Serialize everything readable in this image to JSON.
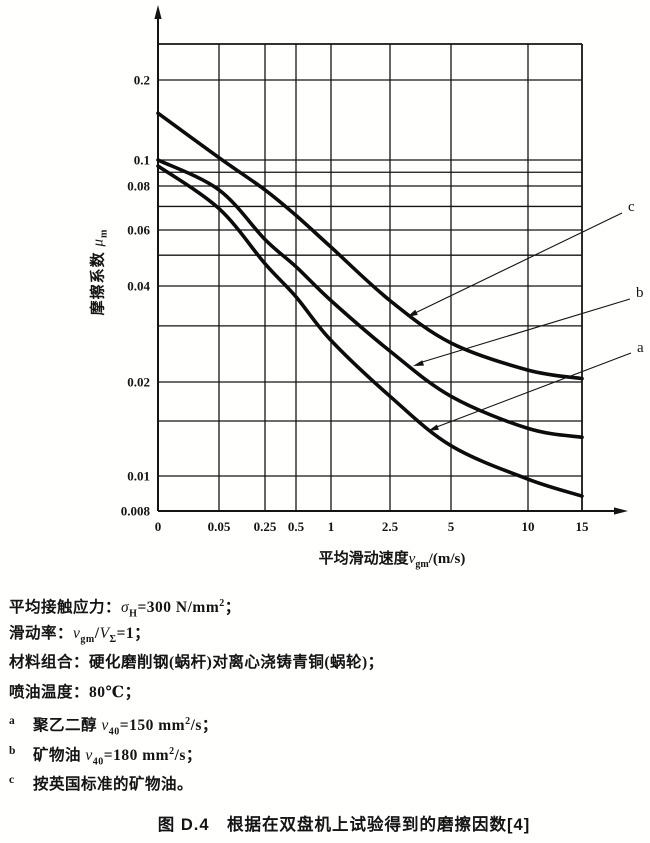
{
  "chart_data": {
    "type": "line",
    "title": "",
    "x": [
      0,
      0.05,
      0.25,
      0.5,
      1,
      2.5,
      5,
      10,
      15
    ],
    "series": [
      {
        "name": "a",
        "values": [
          0.095,
          0.069,
          0.047,
          0.037,
          0.027,
          0.018,
          0.0125,
          0.0098,
          0.0088
        ]
      },
      {
        "name": "b",
        "values": [
          0.1,
          0.078,
          0.056,
          0.046,
          0.036,
          0.025,
          0.018,
          0.0142,
          0.0133
        ]
      },
      {
        "name": "c",
        "values": [
          0.15,
          0.102,
          0.078,
          0.066,
          0.053,
          0.036,
          0.0265,
          0.0218,
          0.0205
        ]
      }
    ],
    "curve_label_order_top_to_bottom": [
      "c",
      "b",
      "a"
    ],
    "x_axis": {
      "ticks": [
        "0",
        "0.05",
        "0.25",
        "0.5",
        "1",
        "2.5",
        "5",
        "10",
        "15"
      ],
      "label_prefix": "平均滑动速度",
      "label_var": "v",
      "label_sub": "gm",
      "label_suffix": "/(m/s)"
    },
    "y_axis": {
      "ticks": [
        "0.2",
        "0.1",
        "0.08",
        "0.06",
        "0.04",
        "0.02",
        "0.01",
        "0.008"
      ],
      "minor_gridlines": [
        0.09,
        0.07,
        0.05,
        0.03,
        0.015
      ],
      "label_prefix": "摩擦系数 ",
      "label_var": "μ",
      "label_sub": "m",
      "range": [
        0.008,
        0.25
      ]
    },
    "grid": "on",
    "scale": "log-log"
  },
  "notes": [
    {
      "marker": "",
      "segments": [
        {
          "t": "平均接触应力："
        },
        {
          "t": "σ",
          "s": "var"
        },
        {
          "t": "H",
          "s": "sub"
        },
        {
          "t": "=300 N/mm"
        },
        {
          "t": "2",
          "s": "sup"
        },
        {
          "t": "；"
        }
      ]
    },
    {
      "marker": "",
      "segments": [
        {
          "t": "滑动率："
        },
        {
          "t": "v",
          "s": "var"
        },
        {
          "t": "gm",
          "s": "sub"
        },
        {
          "t": "/"
        },
        {
          "t": "V",
          "s": "var"
        },
        {
          "t": "Σ",
          "s": "sub"
        },
        {
          "t": "=1；"
        }
      ]
    },
    {
      "marker": "",
      "segments": [
        {
          "t": "材料组合：硬化磨削钢(蜗杆)对离心浇铸青铜(蜗轮)；"
        }
      ]
    },
    {
      "marker": "",
      "segments": [
        {
          "t": "喷油温度：80℃；"
        }
      ]
    },
    {
      "marker": "a",
      "segments": [
        {
          "t": "聚乙二醇 "
        },
        {
          "t": "ν",
          "s": "var"
        },
        {
          "t": "40",
          "s": "sub"
        },
        {
          "t": "=150 mm"
        },
        {
          "t": "2",
          "s": "sup"
        },
        {
          "t": "/s；"
        }
      ]
    },
    {
      "marker": "b",
      "segments": [
        {
          "t": "矿物油 "
        },
        {
          "t": "ν",
          "s": "var"
        },
        {
          "t": "40",
          "s": "sub"
        },
        {
          "t": "=180 mm"
        },
        {
          "t": "2",
          "s": "sup"
        },
        {
          "t": "/s；"
        }
      ]
    },
    {
      "marker": "c",
      "segments": [
        {
          "t": "按英国标准的矿物油。"
        }
      ]
    }
  ],
  "caption": "图 D.4　根据在双盘机上试验得到的磨擦因数[4]"
}
